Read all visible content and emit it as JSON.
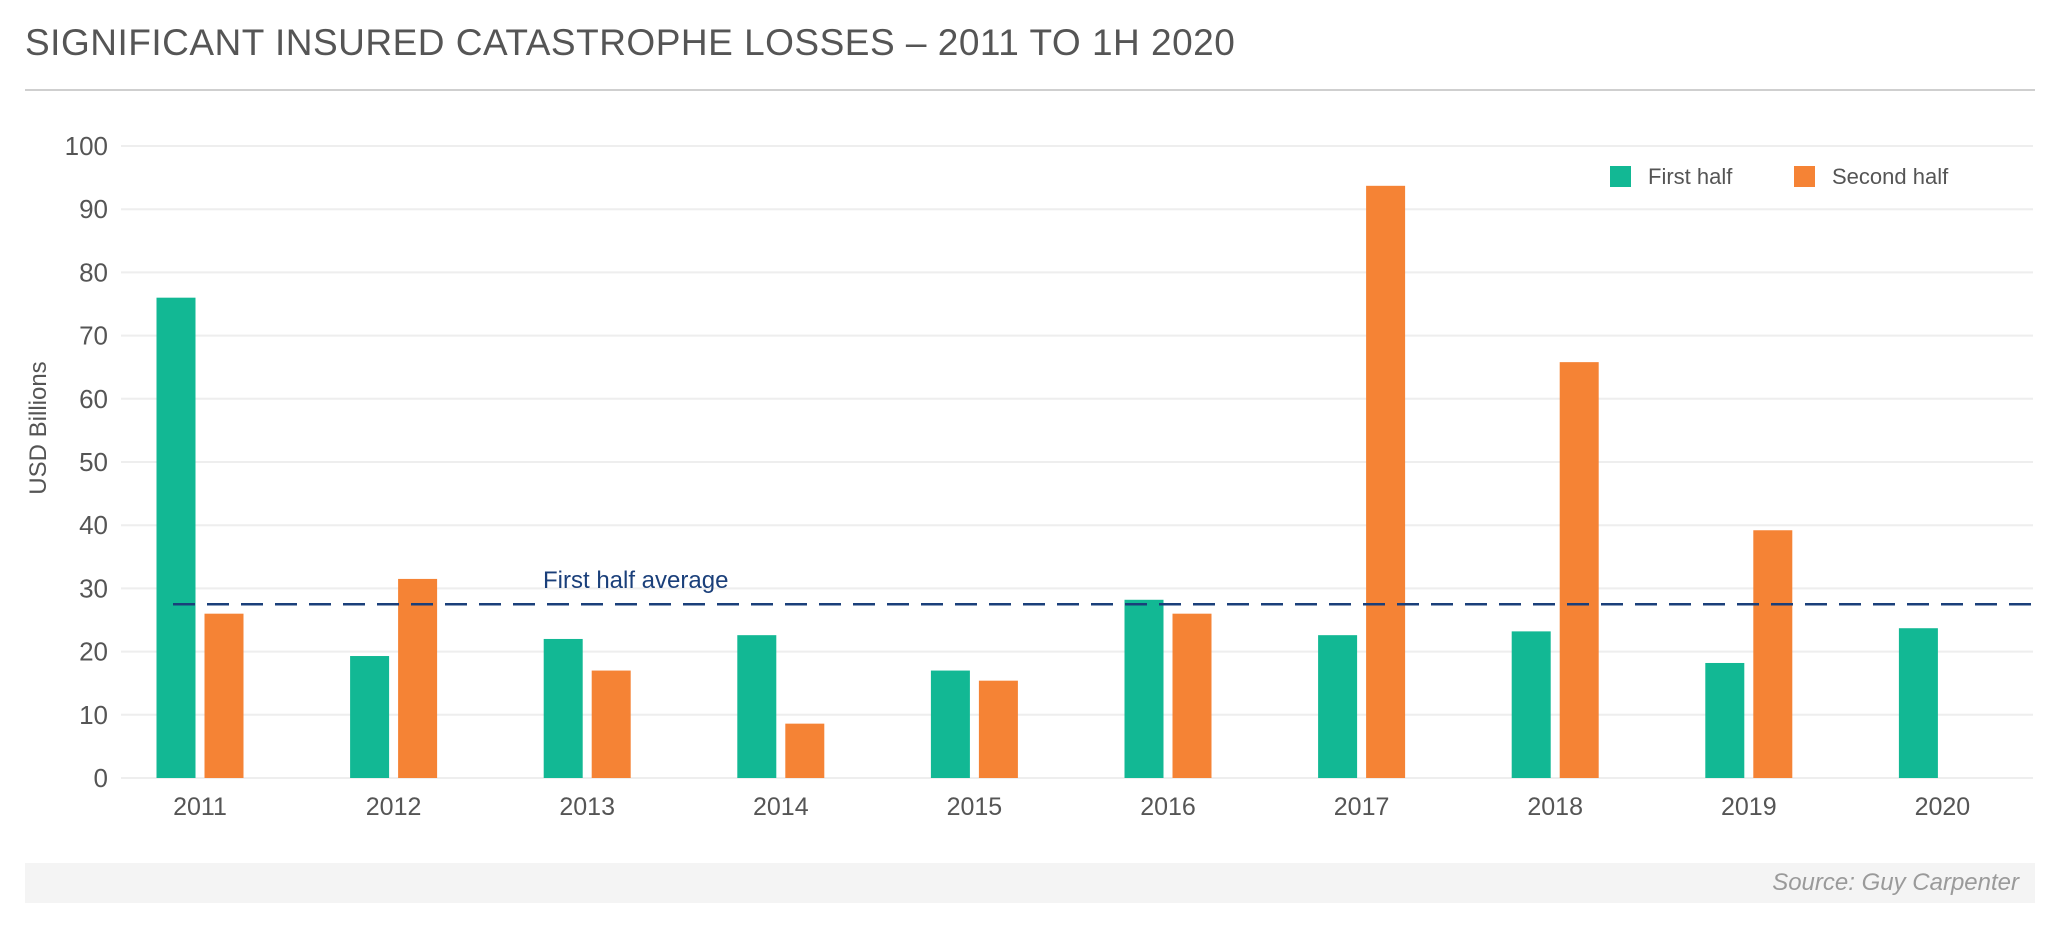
{
  "title": "SIGNIFICANT INSURED CATASTROPHE LOSSES – 2011 TO 1H 2020",
  "source": "Source: Guy Carpenter",
  "colors": {
    "first_half": "#12b894",
    "second_half": "#f58335",
    "average": "#1a3f7a",
    "grid": "#eeeeee",
    "text": "#555555"
  },
  "chart_data": {
    "type": "bar",
    "title": "SIGNIFICANT INSURED CATASTROPHE LOSSES – 2011 TO 1H 2020",
    "xlabel": "",
    "ylabel": "USD Billions",
    "ylim": [
      0,
      100
    ],
    "yticks": [
      0,
      10,
      20,
      30,
      40,
      50,
      60,
      70,
      80,
      90,
      100
    ],
    "grid": true,
    "legend_position": "top-right",
    "categories": [
      "2011",
      "2012",
      "2013",
      "2014",
      "2015",
      "2016",
      "2017",
      "2018",
      "2019",
      "2020"
    ],
    "series": [
      {
        "name": "First half",
        "values": [
          76.0,
          19.3,
          22.0,
          22.6,
          17.0,
          28.2,
          22.6,
          23.2,
          18.2,
          23.7
        ]
      },
      {
        "name": "Second half",
        "values": [
          26.0,
          31.5,
          17.0,
          8.6,
          15.4,
          26.0,
          93.7,
          65.8,
          39.2,
          null
        ]
      }
    ],
    "reference_line": {
      "label": "First half average",
      "value": 27.5,
      "style": "dashed"
    }
  }
}
